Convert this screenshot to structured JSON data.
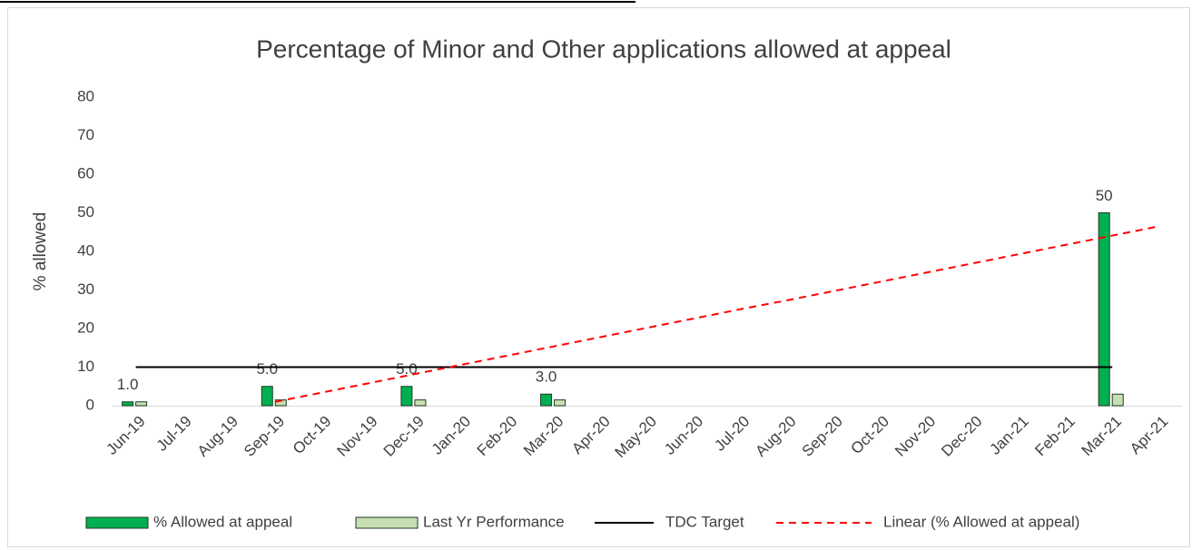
{
  "chart_data": {
    "type": "bar",
    "title": "Percentage of Minor and Other applications allowed at appeal",
    "y_label": "% allowed",
    "categories": [
      "Jun-19",
      "Jul-19",
      "Aug-19",
      "Sep-19",
      "Oct-19",
      "Nov-19",
      "Dec-19",
      "Jan-20",
      "Feb-20",
      "Mar-20",
      "Apr-20",
      "May-20",
      "Jun-20",
      "Jul-20",
      "Aug-20",
      "Sep-20",
      "Oct-20",
      "Nov-20",
      "Dec-20",
      "Jan-21",
      "Feb-21",
      "Mar-21",
      "Apr-21"
    ],
    "ylim": [
      0,
      80
    ],
    "yticks": [
      0,
      10,
      20,
      30,
      40,
      50,
      60,
      70,
      80
    ],
    "series": [
      {
        "name": "% Allowed at appeal",
        "type": "bar",
        "color": "#00b050",
        "values": [
          1,
          null,
          null,
          5,
          null,
          null,
          5,
          null,
          null,
          3,
          null,
          null,
          null,
          null,
          null,
          null,
          null,
          null,
          null,
          null,
          null,
          50,
          null
        ],
        "value_labels": [
          "1.0",
          null,
          null,
          "5.0",
          null,
          null,
          "5.0",
          null,
          null,
          "3.0",
          null,
          null,
          null,
          null,
          null,
          null,
          null,
          null,
          null,
          null,
          null,
          "50",
          null
        ]
      },
      {
        "name": "Last Yr Performance",
        "type": "bar",
        "color": "#c6e0b4",
        "values": [
          1,
          null,
          null,
          1.5,
          null,
          null,
          1.5,
          null,
          null,
          1.5,
          null,
          null,
          null,
          null,
          null,
          null,
          null,
          null,
          null,
          null,
          null,
          3,
          null
        ]
      },
      {
        "name": "TDC Target",
        "type": "line",
        "color": "#000000",
        "values": [
          10,
          10,
          10,
          10,
          10,
          10,
          10,
          10,
          10,
          10,
          10,
          10,
          10,
          10,
          10,
          10,
          10,
          10,
          10,
          10,
          10,
          10,
          null
        ]
      },
      {
        "name": "Linear (% Allowed at appeal)",
        "type": "line",
        "dashed": true,
        "color": "#ff0000",
        "values": [
          null,
          null,
          null,
          1.0,
          3.4,
          5.8,
          8.2,
          10.6,
          13.0,
          15.4,
          17.8,
          20.2,
          22.6,
          25.0,
          27.3,
          29.7,
          32.1,
          34.5,
          36.9,
          39.3,
          41.7,
          44.1,
          46.5
        ]
      }
    ],
    "legend": "bottom"
  }
}
